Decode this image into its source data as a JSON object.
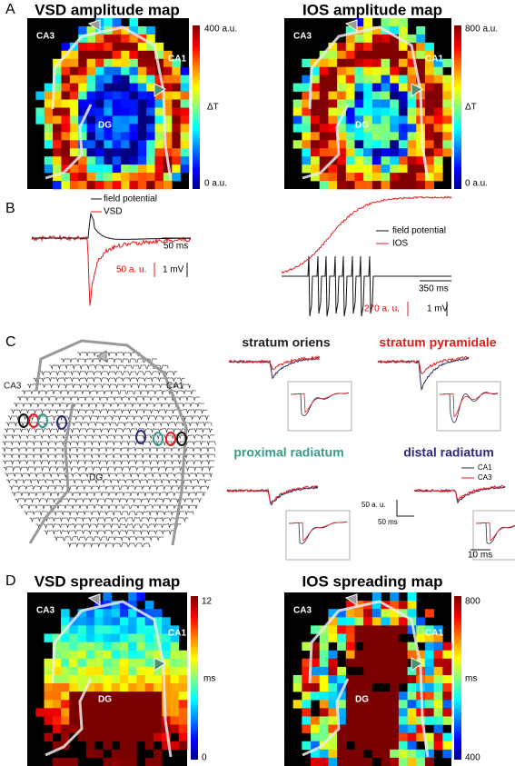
{
  "panels": {
    "A": {
      "label": "A",
      "left": {
        "title": "VSD amplitude map",
        "colorbar": {
          "top": "400 a.u.",
          "middle": "ΔT",
          "bottom": "0 a.u."
        },
        "regions": [
          "CA3",
          "CA1",
          "DG"
        ]
      },
      "right": {
        "title": "IOS amplitude map",
        "colorbar": {
          "top": "800 a.u.",
          "middle": "ΔT",
          "bottom": "0 a.u."
        },
        "regions": [
          "CA3",
          "CA1",
          "DG"
        ]
      }
    },
    "B": {
      "label": "B",
      "left": {
        "legend": [
          "field potential",
          "VSD"
        ],
        "time_scale": "50 ms",
        "signal_scale": "50 a. u.",
        "voltage_scale": "1 mV"
      },
      "right": {
        "legend": [
          "field potential",
          "IOS"
        ],
        "time_scale": "350 ms",
        "signal_scale": "270 a. u.",
        "voltage_scale": "1 mV"
      }
    },
    "C": {
      "label": "C",
      "regions": [
        "CA3",
        "CA1",
        "DG"
      ],
      "subpanels": [
        "stratum oriens",
        "stratum pyramidale",
        "proximal radiatum",
        "distal radiatum"
      ],
      "legend": [
        "CA1",
        "CA3"
      ],
      "amplitude_scale": "50 a. u.",
      "time_scale": "50 ms",
      "inset_time_scale": "10 ms"
    },
    "D": {
      "label": "D",
      "left": {
        "title": "VSD spreading map",
        "colorbar": {
          "top": 12,
          "middle": "ms",
          "bottom": 0
        },
        "regions": [
          "CA3",
          "CA1",
          "DG"
        ]
      },
      "right": {
        "title": "IOS spreading map",
        "colorbar": {
          "top": 800,
          "middle": "ms",
          "bottom": 400
        },
        "regions": [
          "CA3",
          "CA1",
          "DG"
        ]
      }
    }
  }
}
